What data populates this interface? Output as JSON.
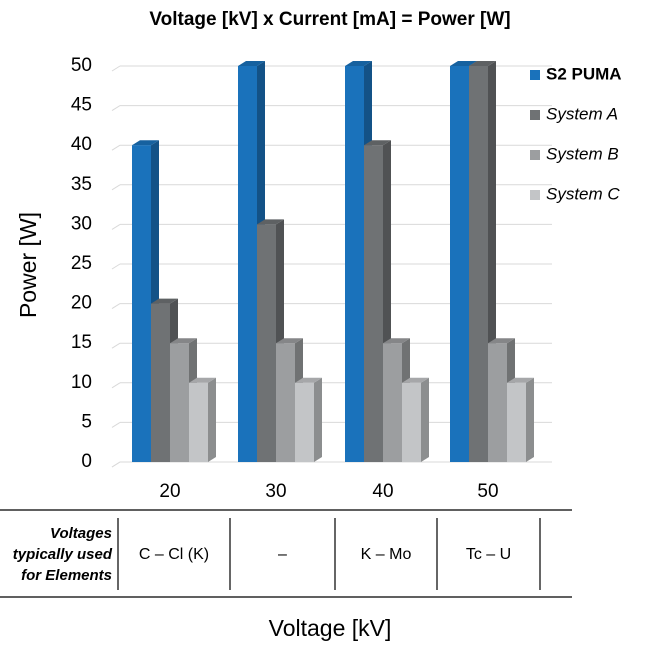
{
  "chart_data": {
    "type": "bar3d",
    "title": "Voltage [kV]  x  Current [mA]  =  Power [W]",
    "y_label": "Power [W]",
    "x_label": "Voltage [kV]",
    "categories": [
      "20",
      "30",
      "40",
      "50"
    ],
    "series": [
      {
        "name": "S2 PUMA",
        "color": "#1a72bb",
        "values": [
          40,
          50,
          50,
          50
        ]
      },
      {
        "name": "System A",
        "color": "#6f7274",
        "values": [
          20,
          30,
          40,
          50
        ]
      },
      {
        "name": "System B",
        "color": "#9c9ea0",
        "values": [
          15,
          15,
          15,
          15
        ]
      },
      {
        "name": "System C",
        "color": "#c3c5c7",
        "values": [
          10,
          10,
          10,
          10
        ]
      }
    ],
    "ylim": [
      0,
      50
    ],
    "yticks": [
      0,
      5,
      10,
      15,
      20,
      25,
      30,
      35,
      40,
      45,
      50
    ],
    "grid": true,
    "legend": "right"
  },
  "table": {
    "header": [
      "Voltages",
      "typically used",
      "for Elements"
    ],
    "cells": [
      "C – Cl (K)",
      "–",
      "K – Mo",
      "Tc – U"
    ]
  }
}
